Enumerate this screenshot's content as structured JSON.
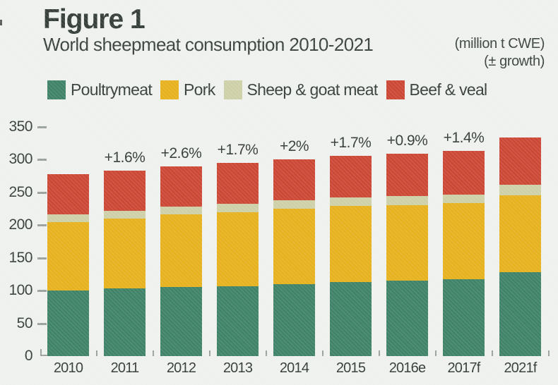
{
  "header": {
    "figure_label": "Figure 1",
    "title": "World sheepmeat consumption 2010-2021",
    "unit_note_line1": "(million t CWE)",
    "unit_note_line2": "(± growth)"
  },
  "colors": {
    "background": "#eff1ee",
    "poultrymeat": "#3e8268",
    "pork": "#e7b11d",
    "sheep_goat": "#cdd0a7",
    "beef_veal": "#cc4733",
    "text": "#3a423e",
    "axis": "#9aa19d"
  },
  "chart_data": {
    "type": "bar",
    "stacked": true,
    "title": "World sheepmeat consumption 2010-2021",
    "unit": "million t CWE",
    "categories": [
      "2010",
      "2011",
      "2012",
      "2013",
      "2014",
      "2015",
      "2016e",
      "2017f",
      "2021f"
    ],
    "series": [
      {
        "name": "Poultrymeat",
        "color": "#3e8268",
        "values": [
          100,
          103,
          105,
          107,
          110,
          113,
          115,
          117,
          128
        ]
      },
      {
        "name": "Pork",
        "color": "#e7b11d",
        "values": [
          105,
          107,
          111,
          113,
          115,
          116,
          116,
          117,
          118
        ]
      },
      {
        "name": "Sheep & goat meat",
        "color": "#cdd0a7",
        "values": [
          12,
          12,
          12,
          13,
          13,
          13,
          13,
          13,
          16
        ]
      },
      {
        "name": "Beef & veal",
        "color": "#cc4733",
        "values": [
          61,
          61,
          62,
          62,
          63,
          64,
          65,
          66,
          72
        ]
      }
    ],
    "totals": [
      278,
      283,
      290,
      295,
      301,
      306,
      309,
      313,
      334
    ],
    "growth_labels": [
      "",
      "+1.6%",
      "+2.6%",
      "+1.7%",
      "+2%",
      "+1.7%",
      "+0.9%",
      "+1.4%",
      ""
    ],
    "y_axis": {
      "ticks": [
        0,
        50,
        100,
        150,
        200,
        250,
        300,
        350
      ],
      "ylim": [
        0,
        350
      ]
    },
    "legend_position": "top",
    "grid": false
  }
}
